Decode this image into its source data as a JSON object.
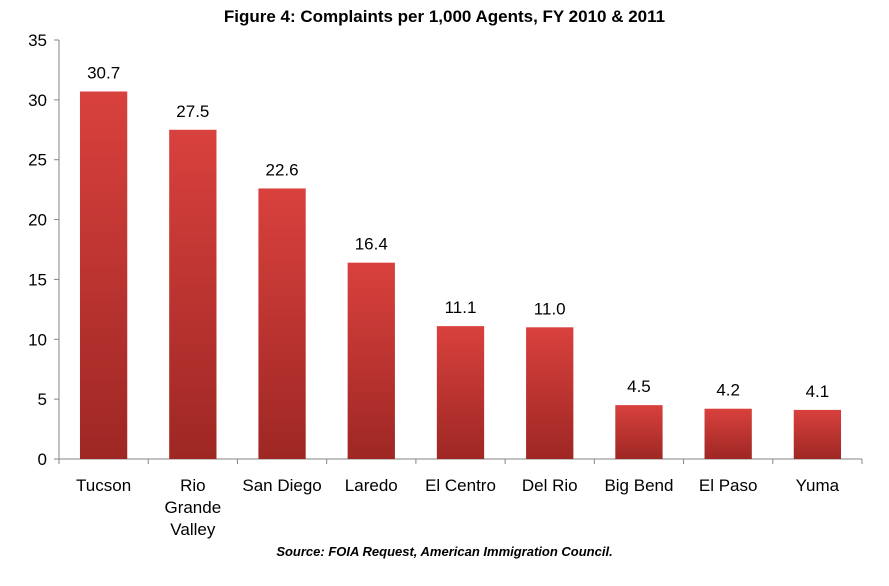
{
  "chart_data": {
    "type": "bar",
    "title": "Figure 4: Complaints per 1,000 Agents, FY 2010 & 2011",
    "source": "Source: FOIA Request, American Immigration Council.",
    "categories": [
      "Tucson",
      "Rio Grande Valley",
      "San Diego",
      "Laredo",
      "El Centro",
      "Del Rio",
      "Big Bend",
      "El Paso",
      "Yuma"
    ],
    "category_lines": [
      [
        "Tucson"
      ],
      [
        "Rio",
        "Grande",
        "Valley"
      ],
      [
        "San Diego"
      ],
      [
        "Laredo"
      ],
      [
        "El Centro"
      ],
      [
        "Del Rio"
      ],
      [
        "Big Bend"
      ],
      [
        "El Paso"
      ],
      [
        "Yuma"
      ]
    ],
    "values": [
      30.7,
      27.5,
      22.6,
      16.4,
      11.1,
      11.0,
      4.5,
      4.2,
      4.1
    ],
    "value_labels": [
      "30.7",
      "27.5",
      "22.6",
      "16.4",
      "11.1",
      "11.0",
      "4.5",
      "4.2",
      "4.1"
    ],
    "ylim": [
      0,
      35
    ],
    "yticks": [
      0,
      5,
      10,
      15,
      20,
      25,
      30,
      35
    ],
    "xlabel": "",
    "ylabel": "",
    "grid": false,
    "legend": "none",
    "colors": {
      "bar_top": "#d9413d",
      "bar_bottom": "#9e2724",
      "axis": "#868686"
    }
  }
}
